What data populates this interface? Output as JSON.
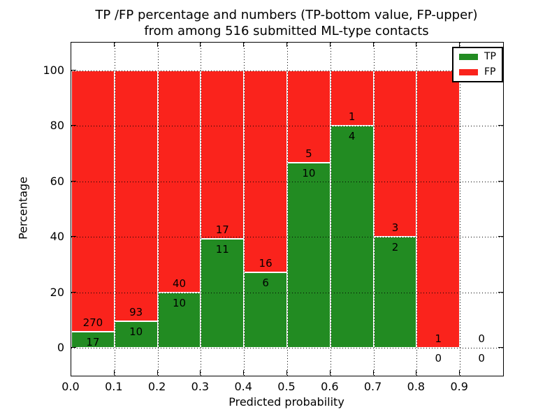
{
  "title": {
    "line1": "TP /FP percentage and numbers (TP-bottom value, FP-upper)",
    "line2": "from among 516 submitted ML-type contacts"
  },
  "chart_data": {
    "type": "bar",
    "stacked": true,
    "title": "TP /FP percentage and numbers (TP-bottom value, FP-upper)\nfrom among 516 submitted ML-type contacts",
    "xlabel": "Predicted probability",
    "ylabel": "Percentage",
    "xlim": [
      0.0,
      1.0
    ],
    "ylim": [
      -10,
      110
    ],
    "x_ticks": [
      "0.0",
      "0.1",
      "0.2",
      "0.3",
      "0.4",
      "0.5",
      "0.6",
      "0.7",
      "0.8",
      "0.9"
    ],
    "y_ticks": [
      0,
      20,
      40,
      60,
      80,
      100
    ],
    "grid": "dotted",
    "legend_position": "upper right",
    "total_submitted_contacts": 516,
    "series": [
      {
        "name": "TP",
        "color": "#228b22"
      },
      {
        "name": "FP",
        "color": "#fa231c"
      }
    ],
    "bins": [
      {
        "range": [
          0.0,
          0.1
        ],
        "tp": 17,
        "fp": 270,
        "tp_pct": 5.9
      },
      {
        "range": [
          0.1,
          0.2
        ],
        "tp": 10,
        "fp": 93,
        "tp_pct": 9.7
      },
      {
        "range": [
          0.2,
          0.3
        ],
        "tp": 10,
        "fp": 40,
        "tp_pct": 20.0
      },
      {
        "range": [
          0.3,
          0.4
        ],
        "tp": 11,
        "fp": 17,
        "tp_pct": 39.3
      },
      {
        "range": [
          0.4,
          0.5
        ],
        "tp": 6,
        "fp": 16,
        "tp_pct": 27.3
      },
      {
        "range": [
          0.5,
          0.6
        ],
        "tp": 10,
        "fp": 5,
        "tp_pct": 66.7
      },
      {
        "range": [
          0.6,
          0.7
        ],
        "tp": 4,
        "fp": 1,
        "tp_pct": 80.0
      },
      {
        "range": [
          0.7,
          0.8
        ],
        "tp": 2,
        "fp": 3,
        "tp_pct": 40.0
      },
      {
        "range": [
          0.8,
          0.9
        ],
        "tp": 0,
        "fp": 1,
        "tp_pct": 0.0
      },
      {
        "range": [
          0.9,
          1.0
        ],
        "tp": 0,
        "fp": 0,
        "tp_pct": null
      }
    ]
  }
}
